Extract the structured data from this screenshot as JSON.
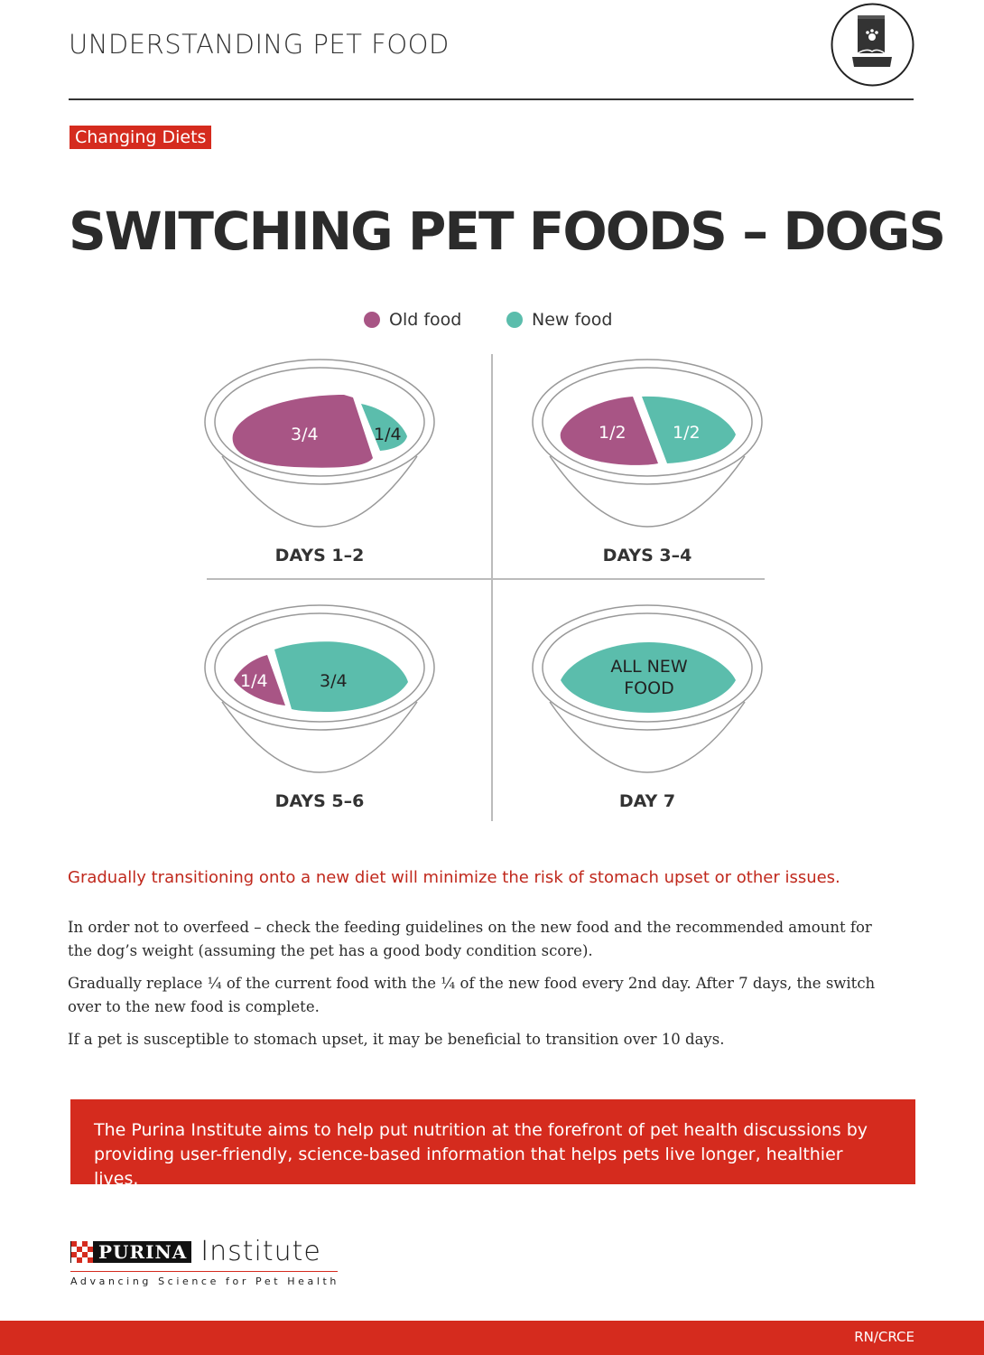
{
  "header": {
    "title": "UNDERSTANDING PET FOOD",
    "icon": "pet-food-bag-icon"
  },
  "tag": "Changing Diets",
  "title": "SWITCHING PET FOODS – DOGS",
  "legend": [
    {
      "label": "Old food",
      "color": "#a85585"
    },
    {
      "label": "New food",
      "color": "#5bbdac"
    }
  ],
  "bowls": [
    {
      "day": "DAYS 1–2",
      "old": "3/4",
      "new": "1/4"
    },
    {
      "day": "DAYS 3–4",
      "old": "1/2",
      "new": "1/2"
    },
    {
      "day": "DAYS 5–6",
      "old": "1/4",
      "new": "3/4"
    },
    {
      "day": "DAY 7",
      "new": "ALL NEW FOOD"
    }
  ],
  "intro": "Gradually transitioning onto a new diet will minimize the risk of stomach upset or other issues.",
  "paragraphs": [
    "In order not to overfeed – check the feeding guidelines on the new food and the recommended amount for the dog’s weight (assuming the pet has a good body condition score).",
    "Gradually replace ¼ of the current food with the ¼ of the new food every 2nd day. After 7 days, the switch over to the new food is complete.",
    "If a pet is susceptible to stomach upset, it may be beneficial to transition over 10 days."
  ],
  "banner": "The Purina Institute aims to help put nutrition at the forefront of pet health discussions by providing user-friendly, science-based information that helps pets live longer, healthier lives.",
  "logo": {
    "brand": "PURINA",
    "name": "Institute",
    "tagline": "Advancing Science for Pet Health"
  },
  "footer": {
    "code": "RN/CRCE"
  },
  "colors": {
    "accent": "#d52b1e",
    "old": "#a85585",
    "new": "#5bbdac"
  }
}
